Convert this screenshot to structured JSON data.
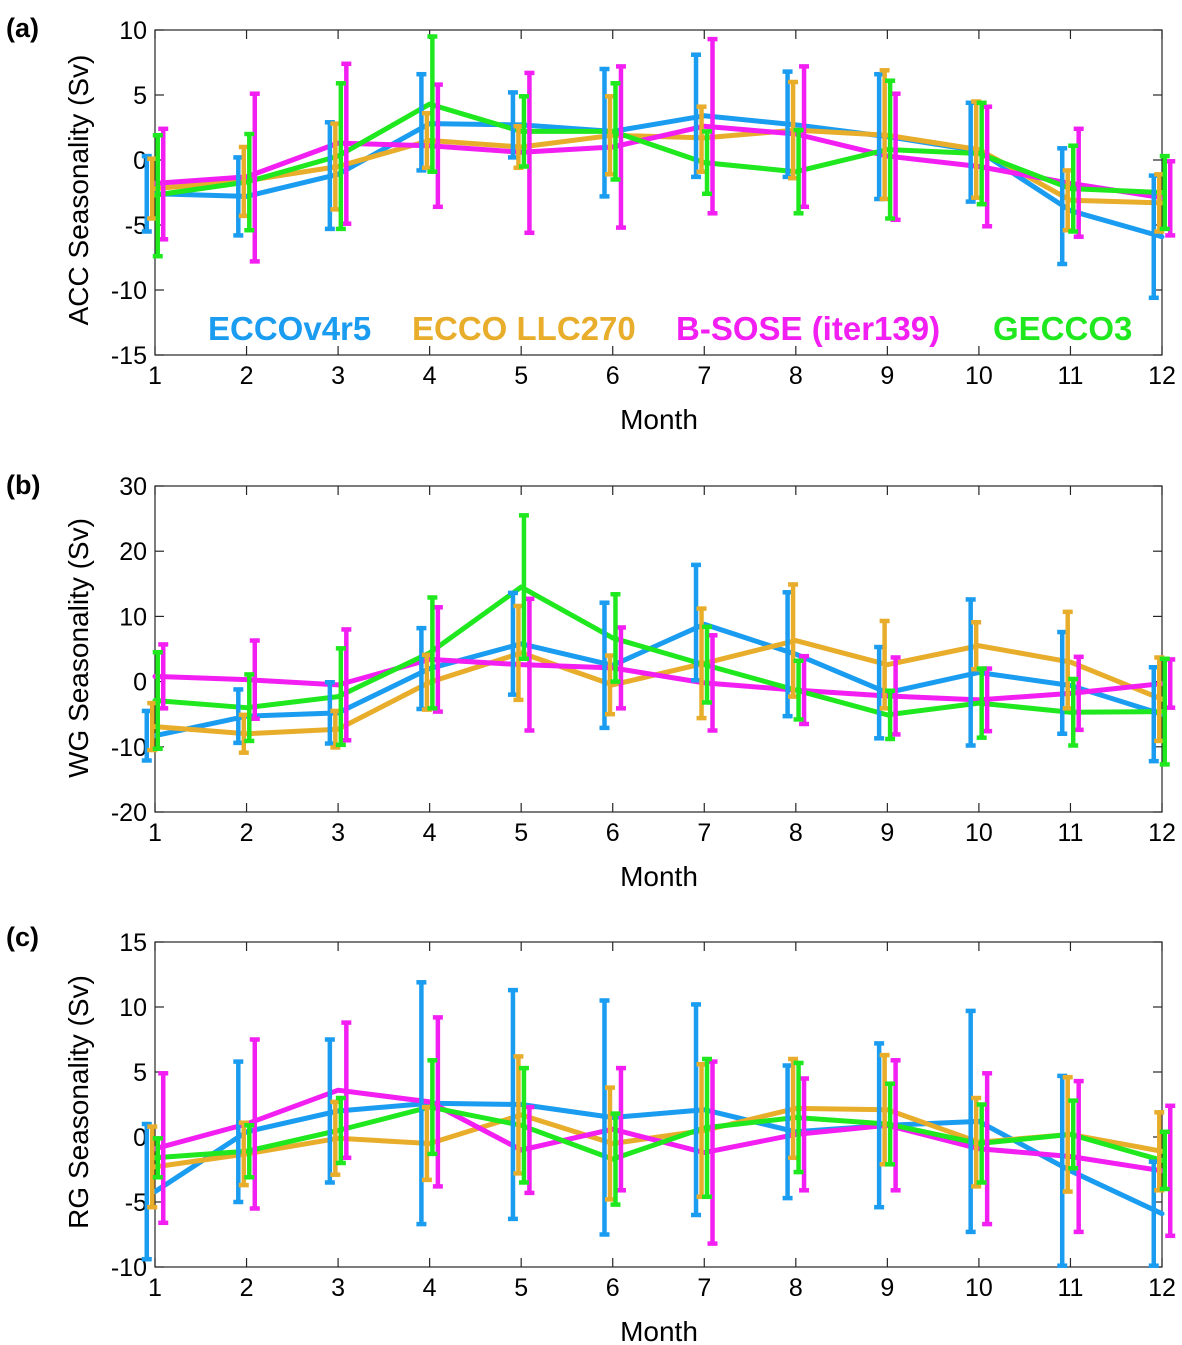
{
  "legend": [
    {
      "name": "ECCOv4r5",
      "color": "#1a9cf0"
    },
    {
      "name": "ECCO LLC270",
      "color": "#e8ad2b"
    },
    {
      "name": "B-SOSE (iter139)",
      "color": "#f21ef2"
    },
    {
      "name": "GECCO3",
      "color": "#1fe81f"
    }
  ],
  "chart_data": [
    {
      "type": "line",
      "panel_label": "(a)",
      "xlabel": "Month",
      "ylabel": "ACC Seasonality (Sv)",
      "xlim": [
        1,
        12
      ],
      "ylim": [
        -15,
        10
      ],
      "xticks": [
        1,
        2,
        3,
        4,
        5,
        6,
        7,
        8,
        9,
        10,
        11,
        12
      ],
      "yticks": [
        -15,
        -10,
        -5,
        0,
        5,
        10
      ],
      "x": [
        1,
        2,
        3,
        4,
        5,
        6,
        7,
        8,
        9,
        10,
        11,
        12
      ],
      "series": [
        {
          "name": "ECCOv4r5",
          "color": "#1a9cf0",
          "values": [
            -2.6,
            -2.8,
            -1.1,
            2.8,
            2.7,
            2.2,
            3.4,
            2.7,
            1.8,
            0.7,
            -3.9,
            -5.9
          ],
          "lower": [
            -5.5,
            -5.8,
            -5.3,
            -0.8,
            0.2,
            -2.8,
            -1.3,
            -1.3,
            -3.0,
            -3.2,
            -8.0,
            -10.6
          ],
          "upper": [
            0.3,
            0.2,
            2.9,
            6.6,
            5.2,
            7.0,
            8.1,
            6.8,
            6.6,
            4.4,
            0.9,
            -1.2
          ]
        },
        {
          "name": "ECCO LLC270",
          "color": "#e8ad2b",
          "values": [
            -2.2,
            -1.6,
            -0.5,
            1.5,
            1.0,
            1.9,
            1.7,
            2.3,
            1.9,
            0.8,
            -3.1,
            -3.3
          ],
          "lower": [
            -4.5,
            -4.3,
            -3.8,
            -0.6,
            -0.6,
            -1.1,
            -0.9,
            -1.4,
            -3.0,
            -2.9,
            -5.4,
            -5.5
          ],
          "upper": [
            0.1,
            1.0,
            2.8,
            3.6,
            2.6,
            4.9,
            4.1,
            6.0,
            6.9,
            4.5,
            -0.8,
            -1.1
          ]
        },
        {
          "name": "B-SOSE (iter139)",
          "color": "#f21ef2",
          "values": [
            -1.8,
            -1.3,
            1.3,
            1.1,
            0.6,
            1.0,
            2.6,
            2.0,
            0.3,
            -0.5,
            -1.8,
            -2.9
          ],
          "lower": [
            -6.1,
            -7.8,
            -4.9,
            -3.6,
            -5.6,
            -5.2,
            -4.1,
            -3.6,
            -4.6,
            -5.1,
            -5.9,
            -5.8
          ],
          "upper": [
            2.4,
            5.1,
            7.4,
            5.8,
            6.7,
            7.2,
            9.3,
            7.2,
            5.1,
            4.1,
            2.4,
            -0.1
          ]
        },
        {
          "name": "GECCO3",
          "color": "#1fe81f",
          "values": [
            -2.7,
            -1.7,
            0.3,
            4.3,
            2.2,
            2.2,
            -0.2,
            -0.9,
            0.8,
            0.5,
            -2.2,
            -2.5
          ],
          "lower": [
            -7.4,
            -5.4,
            -5.3,
            -0.9,
            -0.5,
            -1.5,
            -2.6,
            -4.1,
            -4.5,
            -3.4,
            -5.5,
            -5.3
          ],
          "upper": [
            1.9,
            2.0,
            5.9,
            9.5,
            4.9,
            5.9,
            2.2,
            2.3,
            6.1,
            4.4,
            1.1,
            0.3
          ]
        }
      ]
    },
    {
      "type": "line",
      "panel_label": "(b)",
      "xlabel": "Month",
      "ylabel": "WG Seasonality (Sv)",
      "xlim": [
        1,
        12
      ],
      "ylim": [
        -20,
        30
      ],
      "xticks": [
        1,
        2,
        3,
        4,
        5,
        6,
        7,
        8,
        9,
        10,
        11,
        12
      ],
      "yticks": [
        -20,
        -10,
        0,
        10,
        20,
        30
      ],
      "x": [
        1,
        2,
        3,
        4,
        5,
        6,
        7,
        8,
        9,
        10,
        11,
        12
      ],
      "series": [
        {
          "name": "ECCOv4r5",
          "color": "#1a9cf0",
          "values": [
            -8.3,
            -5.3,
            -4.8,
            2.0,
            5.8,
            2.5,
            8.8,
            4.2,
            -1.7,
            1.4,
            -0.6,
            -5.0
          ],
          "lower": [
            -12.1,
            -9.4,
            -9.5,
            -4.2,
            -2.0,
            -7.1,
            0.2,
            -5.3,
            -8.7,
            -9.8,
            -8.0,
            -12.2
          ],
          "upper": [
            -4.5,
            -1.2,
            -0.1,
            8.2,
            13.6,
            12.1,
            17.9,
            13.7,
            5.3,
            12.6,
            7.6,
            2.2
          ]
        },
        {
          "name": "ECCO LLC270",
          "color": "#e8ad2b",
          "values": [
            -6.9,
            -8.0,
            -7.3,
            -0.1,
            4.4,
            -0.5,
            2.8,
            6.3,
            2.6,
            5.5,
            3.0,
            -2.7
          ],
          "lower": [
            -10.5,
            -10.9,
            -10.1,
            -4.3,
            -2.8,
            -5.0,
            -5.6,
            -2.3,
            -4.1,
            1.9,
            -4.1,
            -9.1
          ],
          "upper": [
            -3.3,
            -5.1,
            -4.5,
            4.1,
            11.6,
            4.0,
            11.2,
            14.9,
            9.3,
            9.1,
            10.7,
            3.7
          ]
        },
        {
          "name": "B-SOSE (iter139)",
          "color": "#f21ef2",
          "values": [
            0.8,
            0.3,
            -0.5,
            3.4,
            2.6,
            2.1,
            -0.2,
            -1.3,
            -2.2,
            -2.8,
            -1.8,
            -0.3
          ],
          "lower": [
            -4.1,
            -5.7,
            -9.0,
            -4.6,
            -7.5,
            -4.1,
            -7.5,
            -6.5,
            -8.1,
            -7.6,
            -7.4,
            -4.0
          ],
          "upper": [
            5.7,
            6.3,
            8.0,
            11.4,
            12.7,
            8.3,
            7.1,
            3.9,
            3.7,
            2.0,
            3.8,
            3.4
          ]
        },
        {
          "name": "GECCO3",
          "color": "#1fe81f",
          "values": [
            -2.9,
            -4.0,
            -2.3,
            4.4,
            14.5,
            6.7,
            2.6,
            -1.3,
            -5.1,
            -3.3,
            -4.7,
            -4.6
          ],
          "lower": [
            -10.3,
            -9.1,
            -9.7,
            -4.1,
            3.5,
            0.0,
            -3.2,
            -5.8,
            -8.8,
            -8.6,
            -9.8,
            -12.7
          ],
          "upper": [
            4.5,
            1.1,
            5.1,
            12.9,
            25.5,
            13.4,
            8.4,
            3.2,
            -1.4,
            2.0,
            0.4,
            3.5
          ]
        }
      ]
    },
    {
      "type": "line",
      "panel_label": "(c)",
      "xlabel": "Month",
      "ylabel": "RG Seasonality (Sv)",
      "xlim": [
        1,
        12
      ],
      "ylim": [
        -10,
        15
      ],
      "xticks": [
        1,
        2,
        3,
        4,
        5,
        6,
        7,
        8,
        9,
        10,
        11,
        12
      ],
      "yticks": [
        -10,
        -5,
        0,
        5,
        10,
        15
      ],
      "x": [
        1,
        2,
        3,
        4,
        5,
        6,
        7,
        8,
        9,
        10,
        11,
        12
      ],
      "series": [
        {
          "name": "ECCOv4r5",
          "color": "#1a9cf0",
          "values": [
            -4.2,
            0.4,
            2.0,
            2.6,
            2.5,
            1.5,
            2.1,
            0.4,
            0.9,
            1.2,
            -2.6,
            -5.9
          ],
          "lower": [
            -9.4,
            -5.0,
            -3.5,
            -6.7,
            -6.3,
            -7.5,
            -6.0,
            -4.7,
            -5.4,
            -7.3,
            -9.9,
            -9.9
          ],
          "upper": [
            1.0,
            5.8,
            7.5,
            11.9,
            11.3,
            10.5,
            10.2,
            5.5,
            7.2,
            9.7,
            4.7,
            -1.9
          ]
        },
        {
          "name": "ECCO LLC270",
          "color": "#e8ad2b",
          "values": [
            -2.3,
            -1.3,
            -0.1,
            -0.5,
            1.7,
            -0.5,
            0.5,
            2.2,
            2.1,
            -0.4,
            0.2,
            -1.1
          ],
          "lower": [
            -5.4,
            -3.7,
            -2.9,
            -3.3,
            -2.8,
            -4.8,
            -4.6,
            -1.6,
            -2.1,
            -3.8,
            -4.2,
            -4.1
          ],
          "upper": [
            0.8,
            1.1,
            2.7,
            2.3,
            6.2,
            3.8,
            5.6,
            6.0,
            6.3,
            3.0,
            4.6,
            1.9
          ]
        },
        {
          "name": "B-SOSE (iter139)",
          "color": "#f21ef2",
          "values": [
            -0.9,
            1.0,
            3.6,
            2.7,
            -1.0,
            0.6,
            -1.2,
            0.2,
            0.9,
            -0.9,
            -1.5,
            -2.6
          ],
          "lower": [
            -6.6,
            -5.5,
            -1.6,
            -3.8,
            -4.3,
            -4.1,
            -8.2,
            -4.1,
            -4.1,
            -6.7,
            -7.3,
            -7.6
          ],
          "upper": [
            4.9,
            7.5,
            8.8,
            9.2,
            2.3,
            5.3,
            5.8,
            4.5,
            5.9,
            4.9,
            4.3,
            2.4
          ]
        },
        {
          "name": "GECCO3",
          "color": "#1fe81f",
          "values": [
            -1.6,
            -1.1,
            0.5,
            2.3,
            0.9,
            -1.7,
            0.7,
            1.5,
            1.0,
            -0.5,
            0.2,
            -1.8
          ],
          "lower": [
            -3.1,
            -3.1,
            -2.0,
            -1.3,
            -3.5,
            -5.2,
            -4.6,
            -2.7,
            -2.1,
            -3.5,
            -2.4,
            -4.0
          ],
          "upper": [
            -0.1,
            0.9,
            3.0,
            5.9,
            5.3,
            1.8,
            6.0,
            5.7,
            4.1,
            2.5,
            2.8,
            0.4
          ]
        }
      ]
    }
  ]
}
